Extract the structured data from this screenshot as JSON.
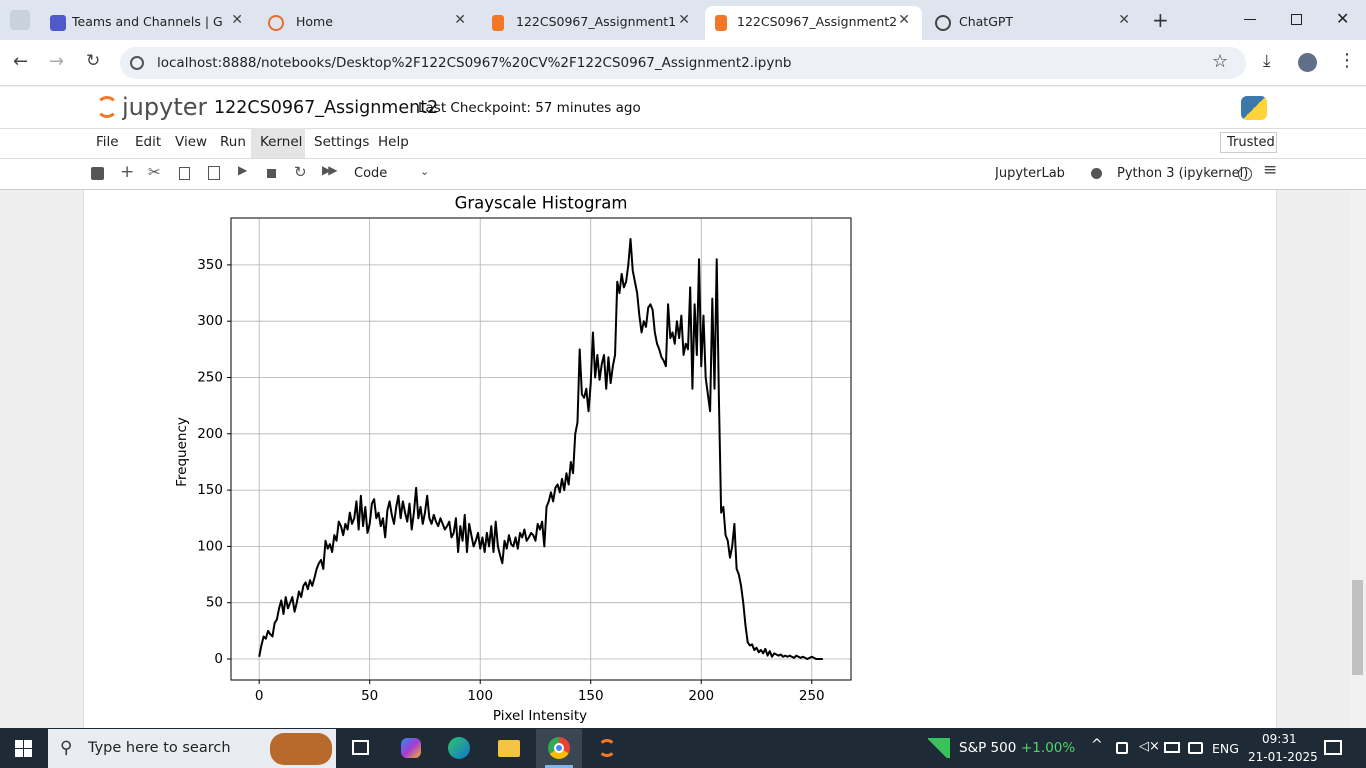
{
  "browser": {
    "tabs": [
      "Teams and Channels | Gene",
      "Home",
      "122CS0967_Assignment1",
      "122CS0967_Assignment2",
      "ChatGPT"
    ],
    "url": "localhost:8888/notebooks/Desktop%2F122CS0967%20CV%2F122CS0967_Assignment2.ipynb"
  },
  "jupyter": {
    "logo": "jupyter",
    "notebook_name": "122CS0967_Assignment2",
    "checkpoint": "Last Checkpoint: 57 minutes ago",
    "menu": [
      "File",
      "Edit",
      "View",
      "Run",
      "Kernel",
      "Settings",
      "Help"
    ],
    "trusted": "Trusted",
    "cell_type": "Code",
    "jupyterlab": "JupyterLab",
    "kernel": "Python 3 (ipykernel)"
  },
  "chart_data": {
    "type": "line",
    "title": "Grayscale Histogram",
    "x_label": "Pixel Intensity",
    "y_label": "Frequency",
    "color": "#000000",
    "grid": true,
    "xlim": [
      -12.75,
      267.75
    ],
    "ylim": [
      -18.65,
      391.65
    ],
    "xticks": [
      0,
      50,
      100,
      150,
      200,
      250
    ],
    "yticks": [
      0,
      50,
      100,
      150,
      200,
      250,
      300,
      350
    ],
    "x": [
      0,
      1,
      2,
      3,
      4,
      5,
      6,
      7,
      8,
      9,
      10,
      11,
      12,
      13,
      14,
      15,
      16,
      17,
      18,
      19,
      20,
      21,
      22,
      23,
      24,
      25,
      26,
      27,
      28,
      29,
      30,
      31,
      32,
      33,
      34,
      35,
      36,
      37,
      38,
      39,
      40,
      41,
      42,
      43,
      44,
      45,
      46,
      47,
      48,
      49,
      50,
      51,
      52,
      53,
      54,
      55,
      56,
      57,
      58,
      59,
      60,
      61,
      62,
      63,
      64,
      65,
      66,
      67,
      68,
      69,
      70,
      71,
      72,
      73,
      74,
      75,
      76,
      77,
      78,
      79,
      80,
      81,
      82,
      83,
      84,
      85,
      86,
      87,
      88,
      89,
      90,
      91,
      92,
      93,
      94,
      95,
      96,
      97,
      98,
      99,
      100,
      101,
      102,
      103,
      104,
      105,
      106,
      107,
      108,
      109,
      110,
      111,
      112,
      113,
      114,
      115,
      116,
      117,
      118,
      119,
      120,
      121,
      122,
      123,
      124,
      125,
      126,
      127,
      128,
      129,
      130,
      131,
      132,
      133,
      134,
      135,
      136,
      137,
      138,
      139,
      140,
      141,
      142,
      143,
      144,
      145,
      146,
      147,
      148,
      149,
      150,
      151,
      152,
      153,
      154,
      155,
      156,
      157,
      158,
      159,
      160,
      161,
      162,
      163,
      164,
      165,
      166,
      167,
      168,
      169,
      170,
      171,
      172,
      173,
      174,
      175,
      176,
      177,
      178,
      179,
      180,
      181,
      182,
      183,
      184,
      185,
      186,
      187,
      188,
      189,
      190,
      191,
      192,
      193,
      194,
      195,
      196,
      197,
      198,
      199,
      200,
      201,
      202,
      203,
      204,
      205,
      206,
      207,
      208,
      209,
      210,
      211,
      212,
      213,
      214,
      215,
      216,
      217,
      218,
      219,
      220,
      221,
      222,
      223,
      224,
      225,
      226,
      227,
      228,
      229,
      230,
      231,
      232,
      233,
      234,
      235,
      236,
      237,
      238,
      239,
      240,
      241,
      242,
      243,
      244,
      245,
      246,
      247,
      248,
      249,
      250,
      251,
      252,
      253,
      254,
      255
    ],
    "values": [
      2,
      12,
      20,
      18,
      25,
      22,
      20,
      32,
      35,
      45,
      52,
      40,
      55,
      45,
      50,
      55,
      42,
      50,
      60,
      55,
      65,
      68,
      62,
      70,
      65,
      72,
      80,
      85,
      88,
      80,
      105,
      98,
      102,
      95,
      110,
      105,
      122,
      118,
      110,
      120,
      115,
      130,
      120,
      125,
      140,
      115,
      145,
      118,
      135,
      112,
      120,
      138,
      142,
      125,
      130,
      118,
      125,
      108,
      132,
      140,
      128,
      120,
      135,
      145,
      125,
      140,
      130,
      122,
      138,
      115,
      130,
      152,
      125,
      135,
      120,
      130,
      145,
      125,
      120,
      128,
      122,
      118,
      125,
      120,
      115,
      118,
      122,
      108,
      112,
      125,
      95,
      118,
      105,
      128,
      95,
      120,
      110,
      100,
      105,
      112,
      98,
      108,
      95,
      112,
      100,
      118,
      95,
      122,
      100,
      92,
      85,
      105,
      98,
      110,
      102,
      100,
      108,
      98,
      112,
      108,
      115,
      105,
      108,
      112,
      110,
      105,
      120,
      115,
      122,
      100,
      135,
      140,
      148,
      140,
      152,
      155,
      148,
      160,
      150,
      165,
      155,
      175,
      165,
      200,
      210,
      275,
      235,
      232,
      240,
      220,
      245,
      290,
      250,
      270,
      248,
      262,
      270,
      240,
      268,
      245,
      260,
      270,
      335,
      325,
      342,
      330,
      335,
      350,
      373,
      345,
      335,
      325,
      305,
      290,
      300,
      295,
      312,
      315,
      310,
      290,
      280,
      275,
      268,
      265,
      260,
      315,
      285,
      290,
      280,
      300,
      285,
      305,
      270,
      280,
      275,
      330,
      240,
      315,
      270,
      355,
      260,
      305,
      250,
      235,
      220,
      320,
      240,
      355,
      230,
      130,
      135,
      110,
      105,
      90,
      100,
      120,
      80,
      75,
      65,
      50,
      30,
      15,
      12,
      13,
      8,
      10,
      6,
      8,
      5,
      9,
      3,
      7,
      2,
      5,
      4,
      3,
      4,
      2,
      3,
      2,
      3,
      2,
      1,
      3,
      2,
      1,
      2,
      1,
      0,
      1,
      2,
      1,
      0,
      0,
      0,
      0
    ]
  },
  "taskbar": {
    "search": "Type here to search",
    "stock_name": "S&P 500",
    "stock_change": "+1.00%",
    "language": "ENG",
    "time": "09:31",
    "date": "21-01-2025"
  }
}
